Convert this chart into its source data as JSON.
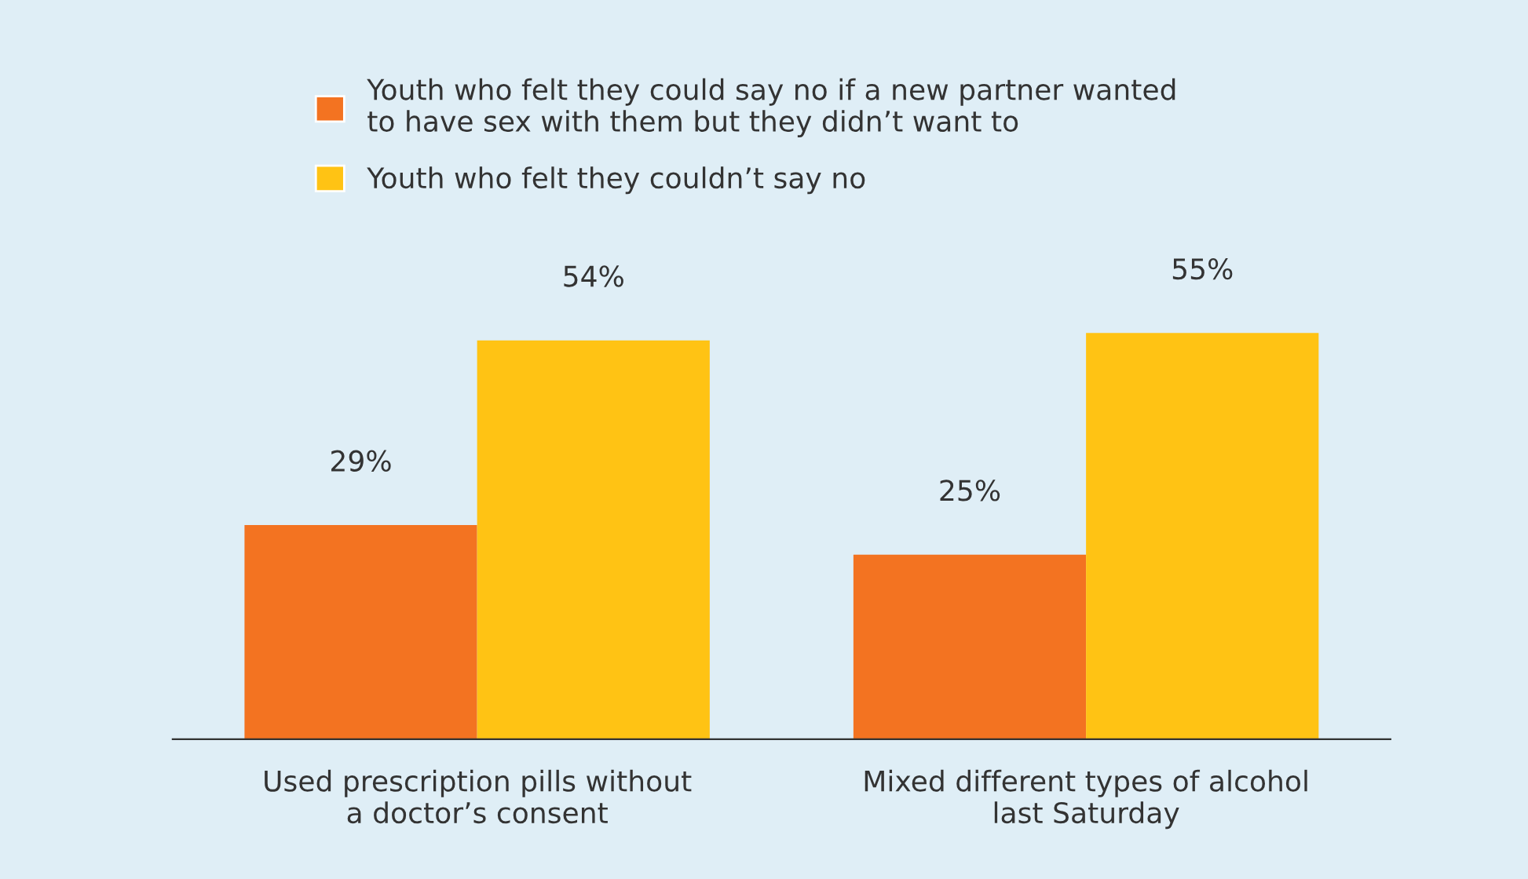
{
  "chart_data": {
    "type": "bar",
    "categories": [
      "Used prescription pills without\na doctor’s consent",
      "Mixed different types of alcohol\nlast Saturday"
    ],
    "series": [
      {
        "name": "Youth who felt they could say no if a new partner wanted\nto have sex with them but they didn’t want to",
        "color": "#f37321",
        "values": [
          29,
          25
        ],
        "value_labels": [
          "29%",
          "25%"
        ]
      },
      {
        "name": "Youth who felt they couldn’t say no",
        "color": "#ffc314",
        "values": [
          54,
          55
        ],
        "value_labels": [
          "54%",
          "55%"
        ]
      }
    ],
    "legend": "top",
    "grid": false
  }
}
